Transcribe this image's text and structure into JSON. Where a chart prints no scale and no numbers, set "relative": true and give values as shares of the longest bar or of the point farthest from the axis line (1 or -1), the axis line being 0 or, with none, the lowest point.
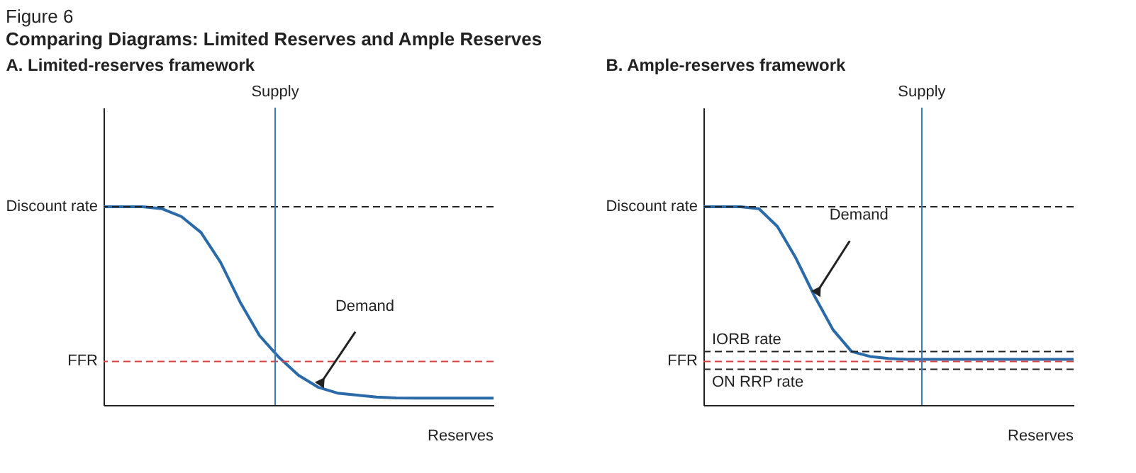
{
  "chart_data": [
    {
      "type": "line",
      "title": "A. Limited-reserves framework",
      "xlabel": "Reserves",
      "relative": true,
      "tick_labels": false,
      "annotations": [
        "Figure 6",
        "Comparing Diagrams: Limited Reserves and Ample Reserves",
        "Demand"
      ],
      "categories": [
        null,
        null,
        null,
        null,
        null,
        null,
        null,
        null,
        null,
        null,
        null,
        null,
        null,
        null,
        null,
        null,
        null,
        null,
        null,
        null,
        null
      ],
      "series": [
        {
          "color": "#2a6aa8",
          "values": [
            1,
            1,
            1,
            0.99,
            0.95,
            0.87,
            0.72,
            0.52,
            0.35,
            0.24,
            0.15,
            0.09,
            0.06,
            0.05,
            0.04,
            0.036,
            0.035,
            0.035,
            0.035,
            0.035,
            0.035
          ]
        }
      ],
      "ref_lines": [
        {
          "axis": "y",
          "value": 1,
          "label": "Discount rate",
          "color": "#222222",
          "line_style": "dashed"
        },
        {
          "axis": "y",
          "value": 0.22,
          "label": "FFR",
          "color": "#d9413a",
          "line_style": "dashed"
        },
        {
          "axis": "x",
          "label": "Supply",
          "color": "#3a7ab8",
          "line_style": "solid"
        }
      ]
    },
    {
      "type": "line",
      "title": "B. Ample-reserves framework",
      "xlabel": "Reserves",
      "relative": true,
      "tick_labels": false,
      "annotations": [
        "Demand"
      ],
      "categories": [
        null,
        null,
        null,
        null,
        null,
        null,
        null,
        null,
        null,
        null,
        null,
        null,
        null,
        null,
        null,
        null,
        null,
        null,
        null,
        null,
        null
      ],
      "series": [
        {
          "color": "#2a6aa8",
          "values": [
            1,
            1,
            1,
            0.99,
            0.9,
            0.74,
            0.55,
            0.38,
            0.27,
            0.245,
            0.235,
            0.23,
            0.23,
            0.23,
            0.23,
            0.23,
            0.23,
            0.23,
            0.23,
            0.23,
            0.23
          ]
        }
      ],
      "ref_lines": [
        {
          "axis": "y",
          "value": 1,
          "label": "Discount rate",
          "color": "#222222",
          "line_style": "dashed"
        },
        {
          "axis": "y",
          "value": 0.27,
          "label": "IORB rate",
          "color": "#222222",
          "line_style": "dashed"
        },
        {
          "axis": "y",
          "value": 0.22,
          "label": "FFR",
          "color": "#d9413a",
          "line_style": "dashed"
        },
        {
          "axis": "y",
          "value": 0.18,
          "label": "ON RRP rate",
          "color": "#222222",
          "line_style": "dashed"
        },
        {
          "axis": "x",
          "label": "Supply",
          "color": "#3a7ab8",
          "line_style": "solid"
        }
      ]
    }
  ]
}
